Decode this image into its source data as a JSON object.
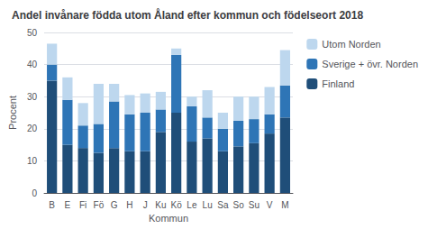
{
  "chart_data": {
    "type": "bar",
    "stacked": true,
    "title": "Andel invånare födda utom Åland efter kommun och födelseort 2018",
    "xlabel": "Kommun",
    "ylabel": "Procent",
    "categories": [
      "B",
      "E",
      "Fi",
      "Fö",
      "G",
      "H",
      "J",
      "Ku",
      "Kö",
      "Le",
      "Lu",
      "Sa",
      "So",
      "Su",
      "V",
      "M"
    ],
    "series": [
      {
        "name": "Finland",
        "color": "#1F4E79",
        "values": [
          35.0,
          15.0,
          14.0,
          12.5,
          14.0,
          13.0,
          13.0,
          19.0,
          25.0,
          16.0,
          17.0,
          13.0,
          14.5,
          15.5,
          18.5,
          23.5
        ]
      },
      {
        "name": "Sverige + övr. Norden",
        "color": "#2E75B6",
        "values": [
          5.0,
          14.0,
          7.0,
          9.0,
          14.5,
          11.5,
          12.0,
          7.0,
          18.0,
          11.0,
          6.5,
          7.0,
          8.0,
          7.5,
          6.0,
          10.0
        ]
      },
      {
        "name": "Utom Norden",
        "color": "#BDD7EE",
        "values": [
          6.5,
          7.0,
          7.0,
          12.5,
          5.5,
          6.0,
          6.0,
          5.5,
          2.0,
          3.0,
          8.5,
          5.0,
          7.5,
          7.0,
          8.5,
          11.0
        ]
      }
    ],
    "ylim": [
      0,
      50
    ],
    "yticks": [
      0,
      10,
      20,
      30,
      40,
      50
    ],
    "grid": true,
    "legend": "right"
  }
}
